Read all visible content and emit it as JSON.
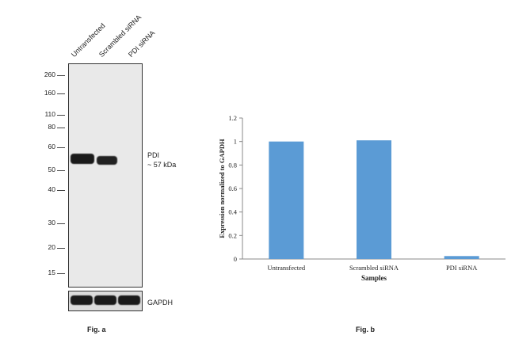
{
  "figure_a": {
    "lanes": [
      "Untransfected",
      "Scrambled siRNA",
      "PDI siRNA"
    ],
    "markers": [
      "260",
      "160",
      "110",
      "80",
      "60",
      "50",
      "40",
      "30",
      "20",
      "15"
    ],
    "band_label": "PDI",
    "band_size": "~ 57 kDa",
    "loading_control": "GAPDH",
    "caption": "Fig. a",
    "background_color": "#e9e9e9",
    "band_color": "#1a1a1a"
  },
  "figure_b": {
    "caption": "Fig. b"
  },
  "chart_data": {
    "type": "bar",
    "categories": [
      "Untransfected",
      "Scrambled siRNA",
      "PDI siRNA"
    ],
    "values": [
      1.0,
      1.01,
      0.025
    ],
    "title": "",
    "xlabel": "Samples",
    "ylabel": "Expression normalized to GAPDH",
    "ylim": [
      0,
      1.2
    ],
    "yticks": [
      "0",
      "0.2",
      "0.4",
      "0.6",
      "0.8",
      "1",
      "1.2"
    ],
    "bar_color": "#5b9bd5",
    "grid": false,
    "legend": "none"
  }
}
